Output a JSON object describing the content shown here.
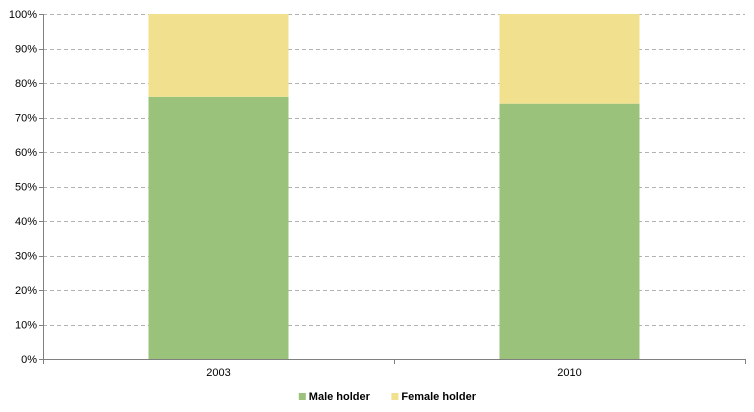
{
  "chart_data": {
    "type": "bar",
    "stacked": true,
    "categories": [
      "2003",
      "2010"
    ],
    "series": [
      {
        "name": "Male holder",
        "values": [
          76,
          74
        ],
        "color": "#9bc27b"
      },
      {
        "name": "Female holder",
        "values": [
          24,
          26
        ],
        "color": "#f1e08d"
      }
    ],
    "title": "",
    "xlabel": "",
    "ylabel": "",
    "ylim": [
      0,
      100
    ],
    "yticks": [
      "0%",
      "10%",
      "20%",
      "30%",
      "40%",
      "50%",
      "60%",
      "70%",
      "80%",
      "90%",
      "100%"
    ],
    "grid": true,
    "legend": "bottom-center"
  }
}
